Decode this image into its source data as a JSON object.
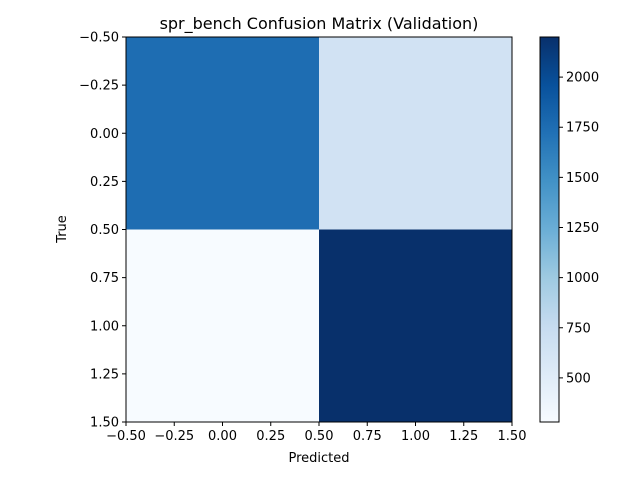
{
  "chart_data": {
    "type": "heatmap",
    "title": "spr_bench Confusion Matrix (Validation)",
    "xlabel": "Predicted",
    "ylabel": "True",
    "colormap": "Blues",
    "values": [
      [
        1750,
        650
      ],
      [
        280,
        2200
      ]
    ],
    "x_ticks": [
      "−0.50",
      "−0.25",
      "0.00",
      "0.25",
      "0.50",
      "0.75",
      "1.00",
      "1.25",
      "1.50"
    ],
    "y_ticks": [
      "−0.50",
      "−0.25",
      "0.00",
      "0.25",
      "0.50",
      "0.75",
      "1.00",
      "1.25",
      "1.50"
    ],
    "xlim": [
      -0.5,
      1.5
    ],
    "ylim": [
      1.5,
      -0.5
    ],
    "colorbar": {
      "min": 280,
      "max": 2200,
      "ticks": [
        "500",
        "750",
        "1000",
        "1250",
        "1500",
        "1750",
        "2000"
      ]
    },
    "grid": false
  }
}
